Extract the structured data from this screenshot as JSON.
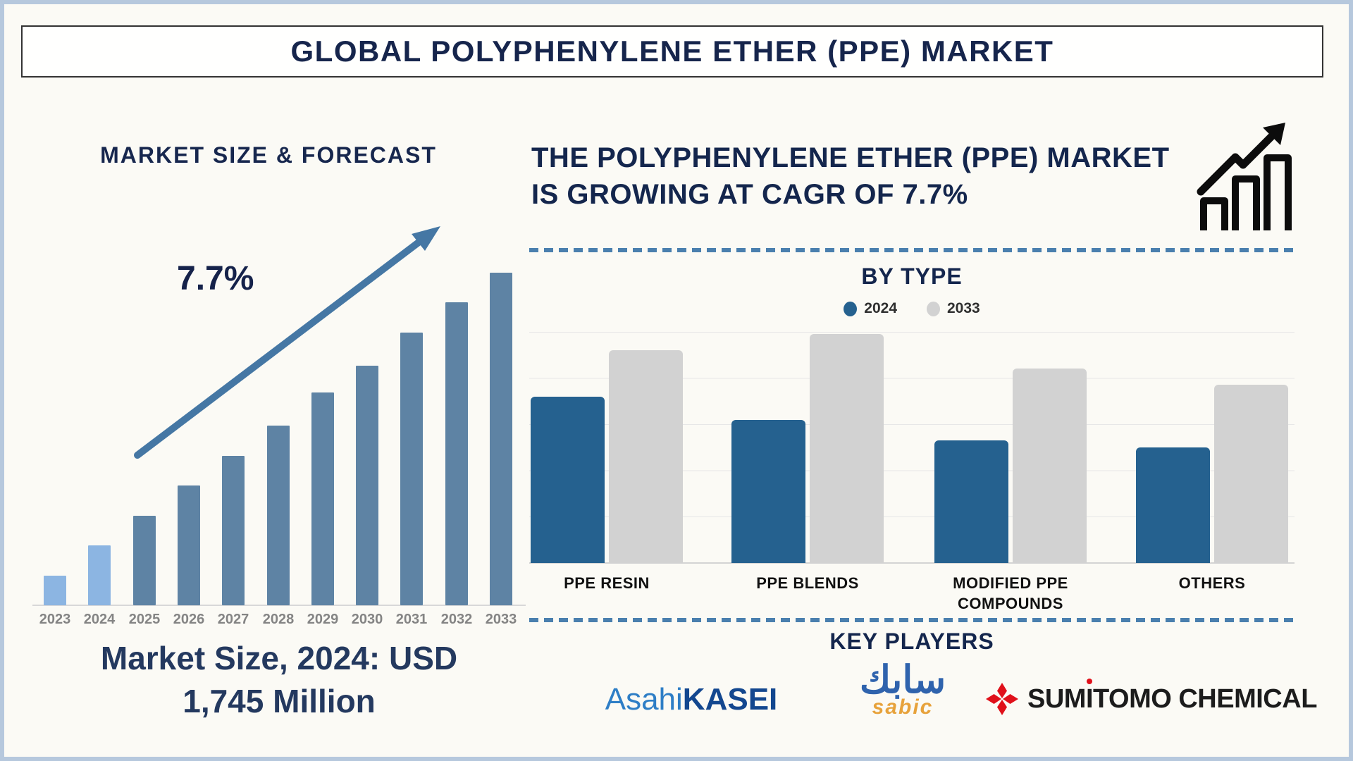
{
  "page": {
    "title": "GLOBAL POLYPHENYLENE ETHER (PPE) MARKET"
  },
  "colors": {
    "navy": "#16254c",
    "steel_blue_arrow": "#4577a4",
    "forecast_bar": "#5e83a4",
    "actual_bar_highlight": "#8cb5e2",
    "series_2024_blue": "#25618f",
    "series_2033_gray": "#d2d2d2",
    "dashed_separator": "#4a7fae",
    "asahi_blue_light": "#2e7ec6",
    "asahi_blue_dark": "#13478f",
    "sabic_blue": "#2f63ad",
    "sabic_orange": "#e7a23b",
    "sumitomo_red": "#e0101a"
  },
  "icons": {
    "growth_chart": "growth-chart-icon",
    "trend_arrow": "up-right-arrow-icon",
    "sumitomo_mark": "diamond-flower-icon"
  },
  "left_panel": {
    "heading": "MARKET SIZE & FORECAST",
    "cagr_label": "7.7%",
    "caption_line1": "Market Size, 2024: USD",
    "caption_line2": "1,745 Million"
  },
  "right_panel": {
    "headline_line1": "THE POLYPHENYLENE ETHER (PPE) MARKET",
    "headline_line2": "IS GROWING AT CAGR OF 7.7%",
    "by_type_heading": "BY TYPE",
    "key_players_heading": "KEY PLAYERS"
  },
  "logos": {
    "asahi": {
      "part1": "Asahi",
      "part2": "KASEI"
    },
    "sabic": {
      "arabic": "سابك",
      "latin": "sabic"
    },
    "sumitomo": {
      "part1": "SUM",
      "part_i": "I",
      "part2": "TOMO CHEMICAL"
    }
  },
  "chart_data": [
    {
      "type": "bar",
      "title": "MARKET SIZE & FORECAST",
      "categories": [
        "2023",
        "2024",
        "2025",
        "2026",
        "2027",
        "2028",
        "2029",
        "2030",
        "2031",
        "2032",
        "2033"
      ],
      "relative_heights": [
        9,
        18,
        27,
        36,
        45,
        54,
        64,
        72,
        82,
        91,
        100
      ],
      "highlight_categories": [
        "2023",
        "2024"
      ],
      "highlight_color": "#8cb5e2",
      "bar_color": "#5e83a4",
      "annotation": "7.7%",
      "xlabel": "",
      "ylabel": "",
      "ylim": [
        0,
        100
      ],
      "y_axis_labels_visible": false,
      "note": "Heights are relative (% of tallest bar); no numeric y-axis is shown. CAGR 7.7%, market size 2024 = USD 1,745 Million."
    },
    {
      "type": "grouped-bar",
      "title": "BY TYPE",
      "categories": [
        "PPE RESIN",
        "PPE BLENDS",
        "MODIFIED PPE COMPOUNDS",
        "OTHERS"
      ],
      "series": [
        {
          "name": "2024",
          "color": "#25618f",
          "relative_heights": [
            72,
            62,
            53,
            50
          ]
        },
        {
          "name": "2033",
          "color": "#d2d2d2",
          "relative_heights": [
            92,
            99,
            84,
            77
          ]
        }
      ],
      "xlabel": "",
      "ylabel": "",
      "ylim": [
        0,
        100
      ],
      "grid": true,
      "legend_position": "top",
      "y_axis_labels_visible": false,
      "note": "Heights are relative (% of plot height); no numeric y-axis is shown."
    }
  ]
}
